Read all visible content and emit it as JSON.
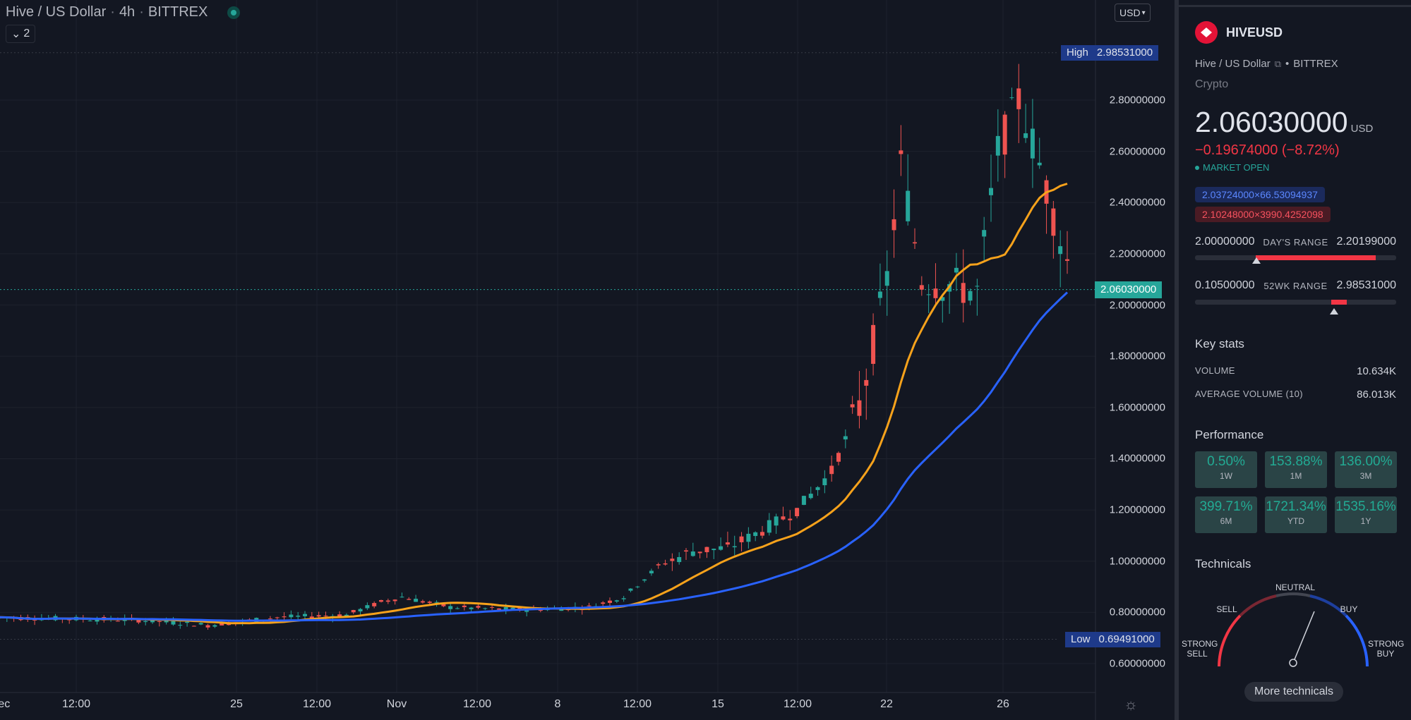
{
  "legend": {
    "symbol": "Hive / US Dollar",
    "interval": "4h",
    "exchange": "BITTREX",
    "collapse_label": "2"
  },
  "currency_button": "USD",
  "price_axis": {
    "labels": [
      "2.80000000",
      "2.60000000",
      "2.40000000",
      "2.20000000",
      "2.00000000",
      "1.80000000",
      "1.60000000",
      "1.40000000",
      "1.20000000",
      "1.00000000",
      "0.80000000",
      "0.60000000"
    ],
    "values": [
      2.8,
      2.6,
      2.4,
      2.2,
      2.0,
      1.8,
      1.6,
      1.4,
      1.2,
      1.0,
      0.8,
      0.6
    ]
  },
  "time_axis": [
    "12:00",
    "25",
    "12:00",
    "Nov",
    "12:00",
    "8",
    "12:00",
    "15",
    "12:00",
    "22",
    "26",
    "Dec"
  ],
  "high": {
    "label": "High",
    "value": "2.98531000"
  },
  "low": {
    "label": "Low",
    "value": "0.69491000"
  },
  "last_price": "2.06030000",
  "colors": {
    "up": "#26a69a",
    "down": "#ef5350",
    "ma_fast": "#f7a21b",
    "ma_slow": "#2962ff",
    "bg": "#131722"
  },
  "sidebar": {
    "symbol": "HIVEUSD",
    "description": "Hive / US Dollar",
    "exchange": "BITTREX",
    "type": "Crypto",
    "price": "2.06030000",
    "currency": "USD",
    "change": "−0.19674000 (−8.72%)",
    "market_status": "MARKET OPEN",
    "bid": "2.03724000×66.53094937",
    "ask": "2.10248000×3990.4252098",
    "days_range": {
      "low": "2.00000000",
      "label": "DAY'S RANGE",
      "high": "2.20199000"
    },
    "wk52_range": {
      "low": "0.10500000",
      "label": "52WK RANGE",
      "high": "2.98531000"
    },
    "key_stats_title": "Key stats",
    "stats": [
      {
        "label": "VOLUME",
        "value": "10.634K"
      },
      {
        "label": "AVERAGE VOLUME (10)",
        "value": "86.013K"
      }
    ],
    "performance_title": "Performance",
    "performance": [
      {
        "value": "0.50%",
        "period": "1W"
      },
      {
        "value": "153.88%",
        "period": "1M"
      },
      {
        "value": "136.00%",
        "period": "3M"
      },
      {
        "value": "399.71%",
        "period": "6M"
      },
      {
        "value": "1721.34%",
        "period": "YTD"
      },
      {
        "value": "1535.16%",
        "period": "1Y"
      }
    ],
    "technicals_title": "Technicals",
    "gauge_labels": {
      "strong_sell": "STRONG SELL",
      "sell": "SELL",
      "neutral": "NEUTRAL",
      "buy": "BUY",
      "strong_buy": "STRONG BUY"
    },
    "more_technicals": "More technicals"
  }
}
